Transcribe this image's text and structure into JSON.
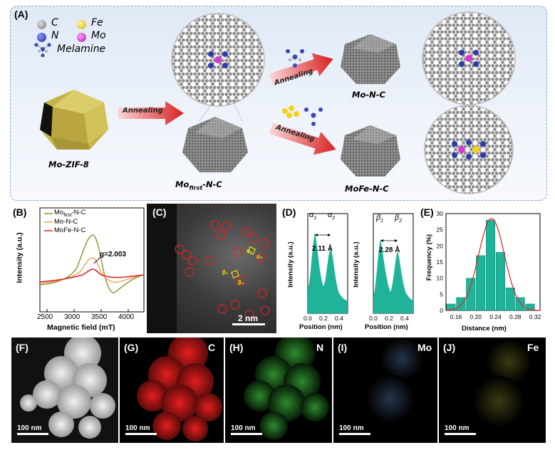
{
  "panel_a": {
    "label": "(A)",
    "legend": [
      {
        "symbol": "C",
        "color": "#9a9a9a"
      },
      {
        "symbol": "Fe",
        "color": "#f2d21b"
      },
      {
        "symbol": "N",
        "color": "#2f3ba8"
      },
      {
        "symbol": "Mo",
        "color": "#d43ad6"
      },
      {
        "symbol": "Melamine",
        "color": "#3b49b5"
      }
    ],
    "captions": {
      "zif": "Mo-ZIF-8",
      "first_base": "Mo",
      "first_sub": "first",
      "first_tail": "-N-C",
      "mo": "Mo-N-C",
      "mofe": "MoFe-N-C"
    },
    "arrows": {
      "a1": "Annealing",
      "a2": "Annealing",
      "a3": "Annealing"
    }
  },
  "panel_b": {
    "label": "(B)",
    "legend_first_base": "Mo",
    "legend_first_sub": "first",
    "legend_first_tail": "-N-C",
    "legend_mo": "Mo-N-C",
    "legend_mofe": "MoFe-N-C",
    "annotation": "g=2.003",
    "xlabel": "Magnetic field (mT)",
    "ylabel": "Intensity (a.u.)",
    "xticks": [
      "2500",
      "3000",
      "3500",
      "4000"
    ],
    "colors": {
      "first": "#8f8f2a",
      "mo": "#e3a45d",
      "mofe": "#d92525"
    }
  },
  "panel_c": {
    "label": "(C)",
    "scale": "2 nm",
    "alpha1": "α₁",
    "alpha2": "α₂",
    "beta1": "β₁",
    "beta2": "β₂"
  },
  "panel_d": {
    "label": "(D)",
    "ylabel": "Intensity (a.u.)",
    "xlabel": "Position (nm)",
    "left": {
      "p1": "α",
      "p1sub": "1",
      "p2": "α",
      "p2sub": "2",
      "dist": "2.11 Å"
    },
    "right": {
      "p1": "β",
      "p1sub": "1",
      "p2": "β",
      "p2sub": "2",
      "dist": "2.28 Å"
    },
    "xticks": [
      "0.0",
      "0.2",
      "0.4"
    ],
    "color": "#1fb39a"
  },
  "panel_e": {
    "label": "(E)",
    "ylabel": "Frequency (%)",
    "xlabel": "Distance (nm)"
  },
  "chart_data": {
    "type": "bar",
    "xlabel": "Distance (nm)",
    "ylabel": "Frequency (%)",
    "categories": [
      "0.15",
      "0.17",
      "0.19",
      "0.21",
      "0.23",
      "0.25",
      "0.27",
      "0.29",
      "0.31"
    ],
    "values": [
      2,
      4,
      10,
      17,
      28,
      18,
      7,
      4,
      2
    ],
    "xlim": [
      0.14,
      0.33
    ],
    "ylim": [
      0,
      30
    ],
    "xticks": [
      "0.16",
      "0.20",
      "0.24",
      "0.28",
      "0.32"
    ],
    "yticks": [
      "0",
      "5",
      "10",
      "15",
      "20",
      "25",
      "30"
    ],
    "bar_color": "#1fb39a",
    "fit_color": "#d92525"
  },
  "panels_maps": [
    {
      "label": "(F)",
      "element": "",
      "scale": "100 nm"
    },
    {
      "label": "(G)",
      "element": "C",
      "scale": "100 nm"
    },
    {
      "label": "(H)",
      "element": "N",
      "scale": "100 nm"
    },
    {
      "label": "(I)",
      "element": "Mo",
      "scale": "100 nm"
    },
    {
      "label": "(J)",
      "element": "Fe",
      "scale": "100 nm"
    }
  ]
}
